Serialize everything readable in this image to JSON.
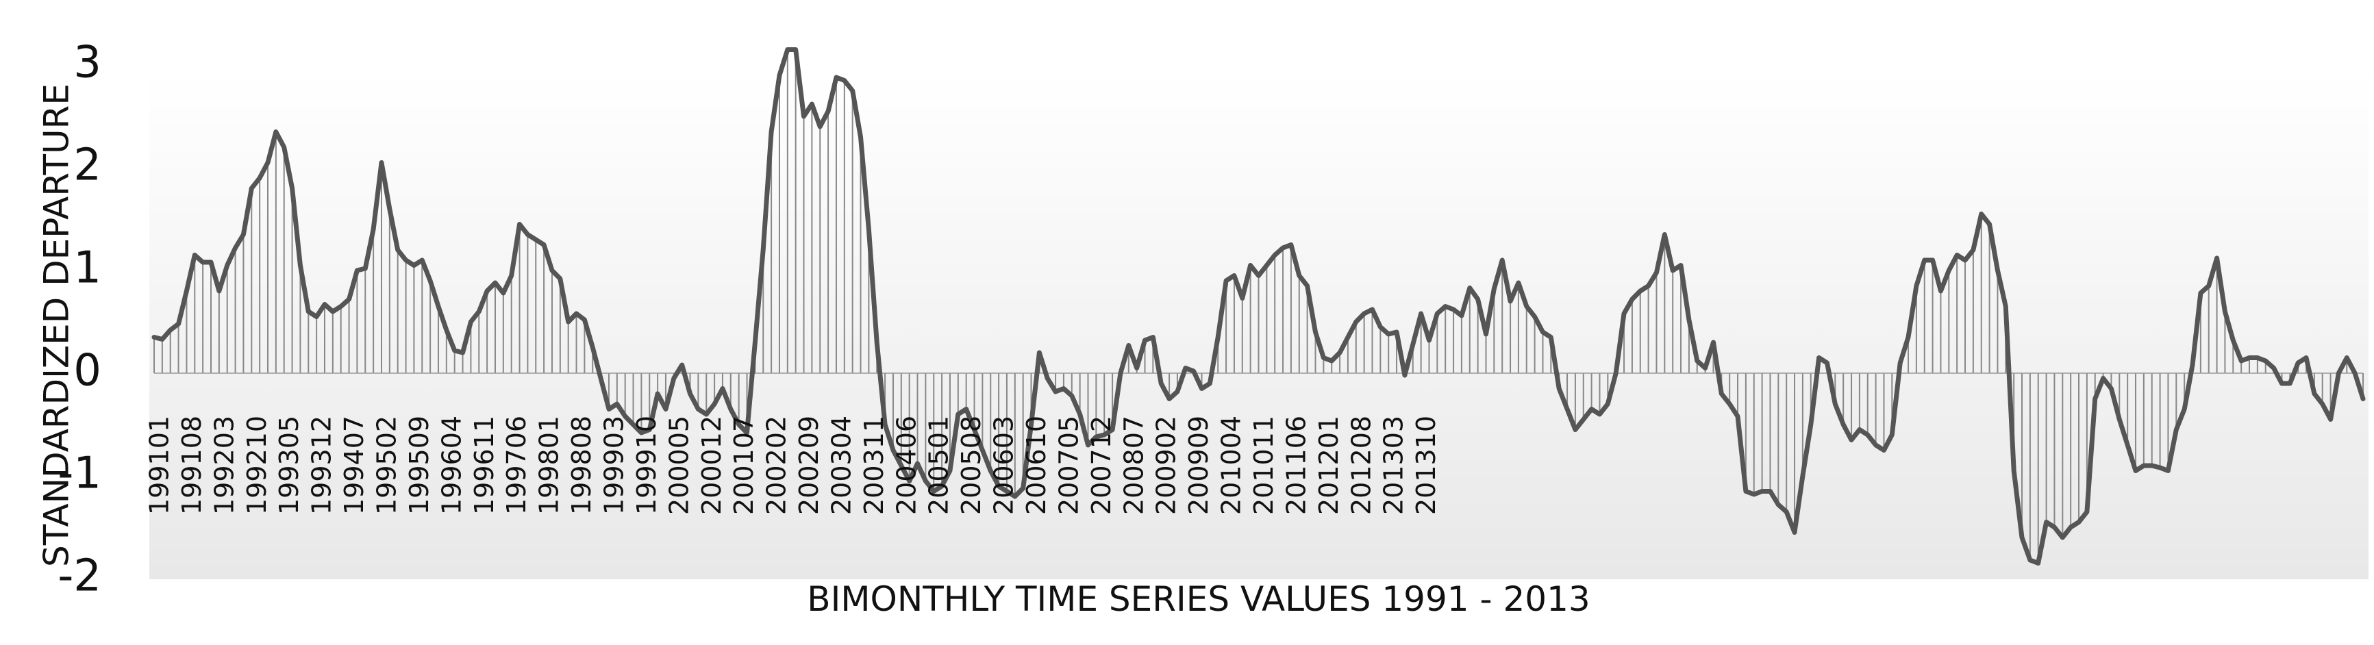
{
  "chart_data": {
    "type": "line",
    "title": "",
    "xlabel": "BIMONTHLY TIME SERIES VALUES  1991 - 2013",
    "ylabel": "STANDARDIZED DEPARTURE",
    "ylim": [
      -2,
      3
    ],
    "yticks": [
      "3",
      "2",
      "1",
      "0",
      "-1",
      "-2"
    ],
    "x_tick_labels": [
      "199101",
      "199108",
      "199203",
      "199210",
      "199305",
      "199312",
      "199407",
      "199502",
      "199509",
      "199604",
      "199611",
      "199706",
      "199801",
      "199808",
      "199903",
      "199910",
      "200005",
      "200012",
      "200107",
      "200202",
      "200209",
      "200304",
      "200311",
      "200406",
      "200501",
      "200508",
      "200603",
      "200610",
      "200705",
      "200712",
      "200807",
      "200902",
      "200909",
      "201004",
      "201011",
      "201106",
      "201201",
      "201208",
      "201303",
      "201310"
    ],
    "fill": "vertical-hatch-to-zero",
    "grid": false,
    "series": [
      {
        "values": [
          0.35,
          0.33,
          0.42,
          0.48,
          0.8,
          1.15,
          1.08,
          1.08,
          0.8,
          1.05,
          1.22,
          1.35,
          1.8,
          1.9,
          2.05,
          2.35,
          2.2,
          1.8,
          1.05,
          0.6,
          0.55,
          0.67,
          0.6,
          0.65,
          0.72,
          1.0,
          1.02,
          1.4,
          2.05,
          1.6,
          1.2,
          1.1,
          1.05,
          1.1,
          0.9,
          0.65,
          0.42,
          0.22,
          0.2,
          0.5,
          0.6,
          0.8,
          0.88,
          0.78,
          0.95,
          1.45,
          1.35,
          1.3,
          1.25,
          1.0,
          0.92,
          0.5,
          0.58,
          0.52,
          0.25,
          -0.05,
          -0.35,
          -0.3,
          -0.42,
          -0.5,
          -0.58,
          -0.55,
          -0.2,
          -0.35,
          -0.05,
          0.08,
          -0.2,
          -0.35,
          -0.4,
          -0.3,
          -0.15,
          -0.35,
          -0.5,
          -0.58,
          0.3,
          1.2,
          2.35,
          2.9,
          3.15,
          3.15,
          2.5,
          2.62,
          2.4,
          2.55,
          2.88,
          2.85,
          2.75,
          2.3,
          1.4,
          0.3,
          -0.5,
          -0.75,
          -0.9,
          -1.05,
          -0.88,
          -1.05,
          -1.15,
          -1.1,
          -0.95,
          -0.4,
          -0.35,
          -0.55,
          -0.75,
          -0.95,
          -1.1,
          -1.15,
          -1.2,
          -1.12,
          -0.5,
          0.2,
          -0.05,
          -0.18,
          -0.15,
          -0.22,
          -0.4,
          -0.7,
          -0.62,
          -0.6,
          -0.55,
          0.0,
          0.27,
          0.05,
          0.32,
          0.35,
          -0.1,
          -0.25,
          -0.18,
          0.05,
          0.02,
          -0.15,
          -0.1,
          0.35,
          0.9,
          0.95,
          0.73,
          1.05,
          0.95,
          1.05,
          1.15,
          1.22,
          1.25,
          0.95,
          0.85,
          0.4,
          0.15,
          0.12,
          0.2,
          0.35,
          0.5,
          0.58,
          0.62,
          0.45,
          0.38,
          0.4,
          -0.02,
          0.28,
          0.58,
          0.32,
          0.58,
          0.65,
          0.62,
          0.56,
          0.83,
          0.72,
          0.38,
          0.82,
          1.1,
          0.7,
          0.88,
          0.65,
          0.55,
          0.4,
          0.35,
          -0.15,
          -0.35,
          -0.55,
          -0.45,
          -0.35,
          -0.4,
          -0.3,
          0.0,
          0.58,
          0.72,
          0.8,
          0.85,
          0.98,
          1.35,
          1.0,
          1.05,
          0.52,
          0.12,
          0.05,
          0.3,
          -0.2,
          -0.3,
          -0.42,
          -1.15,
          -1.18,
          -1.15,
          -1.15,
          -1.28,
          -1.35,
          -1.55,
          -1.0,
          -0.5,
          0.15,
          0.1,
          -0.3,
          -0.5,
          -0.65,
          -0.55,
          -0.6,
          -0.7,
          -0.75,
          -0.6,
          0.1,
          0.35,
          0.85,
          1.1,
          1.1,
          0.8,
          1.0,
          1.15,
          1.1,
          1.2,
          1.55,
          1.45,
          1.0,
          0.65,
          -0.95,
          -1.6,
          -1.82,
          -1.85,
          -1.45,
          -1.5,
          -1.6,
          -1.5,
          -1.45,
          -1.35,
          -0.25,
          -0.05,
          -0.15,
          -0.45,
          -0.7,
          -0.95,
          -0.9,
          -0.9,
          -0.92,
          -0.95,
          -0.55,
          -0.35,
          0.08,
          0.78,
          0.85,
          1.12,
          0.6,
          0.32,
          0.12,
          0.15,
          0.15,
          0.12,
          0.05,
          -0.1,
          -0.1,
          0.1,
          0.15,
          -0.2,
          -0.3,
          -0.45,
          0.0,
          0.15,
          0.0,
          -0.25
        ]
      }
    ]
  }
}
